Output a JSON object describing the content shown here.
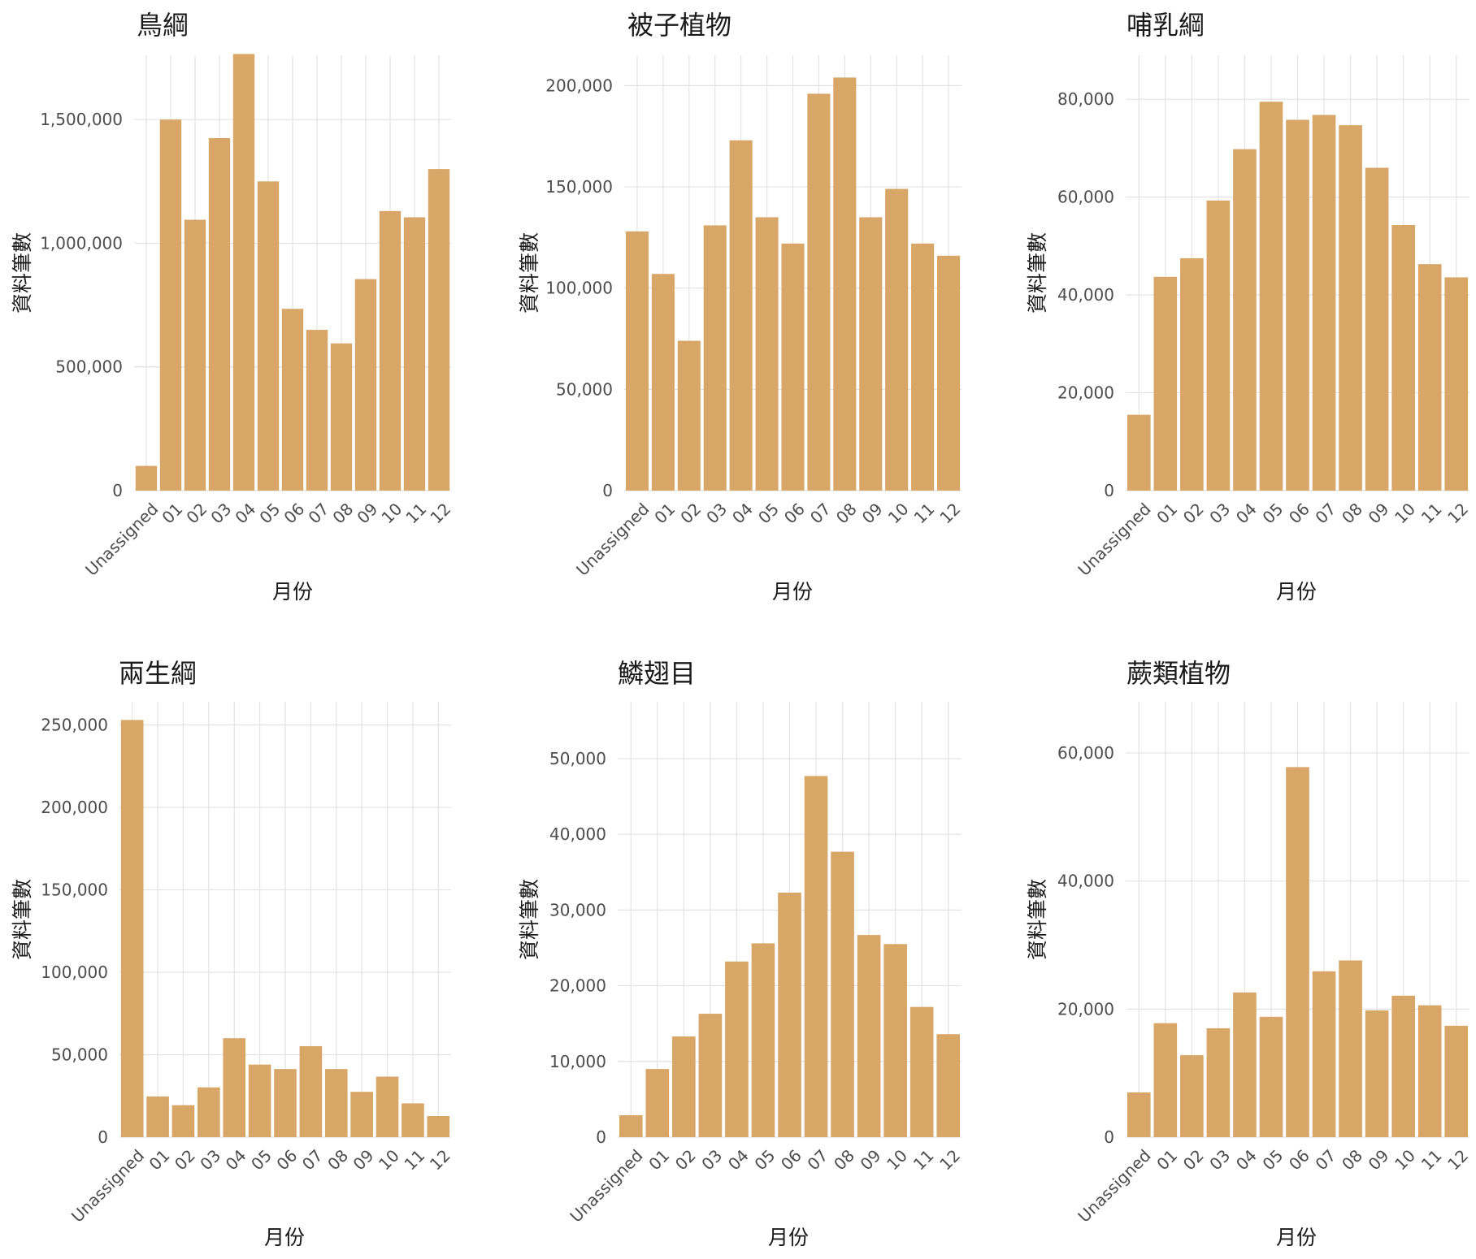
{
  "chart_data": [
    {
      "type": "bar",
      "title": "鳥綱",
      "xlabel": "月份",
      "ylabel": "資料筆數",
      "categories": [
        "Unassigned",
        "01",
        "02",
        "03",
        "04",
        "05",
        "06",
        "07",
        "08",
        "09",
        "10",
        "11",
        "12"
      ],
      "values": [
        100000,
        1500000,
        1095000,
        1425000,
        1765000,
        1250000,
        735000,
        650000,
        595000,
        855000,
        1130000,
        1105000,
        1300000
      ],
      "ylim": [
        0,
        1760000
      ],
      "yticks": [
        0,
        500000,
        1000000,
        1500000
      ],
      "ytick_labels": [
        "0",
        "500,000",
        "1,000,000",
        "1,500,000"
      ],
      "grid": true,
      "bar_color": "#d8a768"
    },
    {
      "type": "bar",
      "title": "被子植物",
      "xlabel": "月份",
      "ylabel": "資料筆數",
      "categories": [
        "Unassigned",
        "01",
        "02",
        "03",
        "04",
        "05",
        "06",
        "07",
        "08",
        "09",
        "10",
        "11",
        "12"
      ],
      "values": [
        128000,
        107000,
        74000,
        131000,
        173000,
        135000,
        122000,
        196000,
        204000,
        135000,
        149000,
        122000,
        116000
      ],
      "ylim": [
        0,
        215000
      ],
      "yticks": [
        0,
        50000,
        100000,
        150000,
        200000
      ],
      "ytick_labels": [
        "0",
        "50,000",
        "100,000",
        "150,000",
        "200,000"
      ],
      "grid": true,
      "bar_color": "#d8a768"
    },
    {
      "type": "bar",
      "title": "哺乳綱",
      "xlabel": "月份",
      "ylabel": "資料筆數",
      "categories": [
        "Unassigned",
        "01",
        "02",
        "03",
        "04",
        "05",
        "06",
        "07",
        "08",
        "09",
        "10",
        "11",
        "12"
      ],
      "values": [
        15500,
        43700,
        47500,
        59300,
        69800,
        79500,
        75800,
        76800,
        74700,
        66000,
        54300,
        46300,
        43600
      ],
      "ylim": [
        0,
        89000
      ],
      "yticks": [
        0,
        20000,
        40000,
        60000,
        80000
      ],
      "ytick_labels": [
        "0",
        "20,000",
        "40,000",
        "60,000",
        "80,000"
      ],
      "grid": true,
      "bar_color": "#d8a768"
    },
    {
      "type": "bar",
      "title": "兩生綱",
      "xlabel": "月份",
      "ylabel": "資料筆數",
      "categories": [
        "Unassigned",
        "01",
        "02",
        "03",
        "04",
        "05",
        "06",
        "07",
        "08",
        "09",
        "10",
        "11",
        "12"
      ],
      "values": [
        253000,
        24700,
        19400,
        30200,
        60000,
        44000,
        41300,
        55200,
        41300,
        27500,
        36700,
        20500,
        12800
      ],
      "ylim": [
        0,
        264000
      ],
      "yticks": [
        0,
        50000,
        100000,
        150000,
        200000,
        250000
      ],
      "ytick_labels": [
        "0",
        "50,000",
        "100,000",
        "150,000",
        "200,000",
        "250,000"
      ],
      "grid": true,
      "bar_color": "#d8a768"
    },
    {
      "type": "bar",
      "title": "鱗翅目",
      "xlabel": "月份",
      "ylabel": "資料筆數",
      "categories": [
        "Unassigned",
        "01",
        "02",
        "03",
        "04",
        "05",
        "06",
        "07",
        "08",
        "09",
        "10",
        "11",
        "12"
      ],
      "values": [
        2900,
        9000,
        13300,
        16300,
        23200,
        25600,
        32300,
        47700,
        37700,
        26700,
        25500,
        17200,
        13600
      ],
      "ylim": [
        0,
        57500
      ],
      "yticks": [
        0,
        10000,
        20000,
        30000,
        40000,
        50000
      ],
      "ytick_labels": [
        "0",
        "10,000",
        "20,000",
        "30,000",
        "40,000",
        "50,000"
      ],
      "grid": true,
      "bar_color": "#d8a768"
    },
    {
      "type": "bar",
      "title": "蕨類植物",
      "xlabel": "月份",
      "ylabel": "資料筆數",
      "categories": [
        "Unassigned",
        "01",
        "02",
        "03",
        "04",
        "05",
        "06",
        "07",
        "08",
        "09",
        "10",
        "11",
        "12"
      ],
      "values": [
        7000,
        17800,
        12800,
        17000,
        22600,
        18800,
        57800,
        25900,
        27600,
        19800,
        22100,
        20600,
        17400
      ],
      "ylim": [
        0,
        68000
      ],
      "yticks": [
        0,
        20000,
        40000,
        60000
      ],
      "ytick_labels": [
        "0",
        "20,000",
        "40,000",
        "60,000"
      ],
      "grid": true,
      "bar_color": "#d8a768"
    }
  ]
}
